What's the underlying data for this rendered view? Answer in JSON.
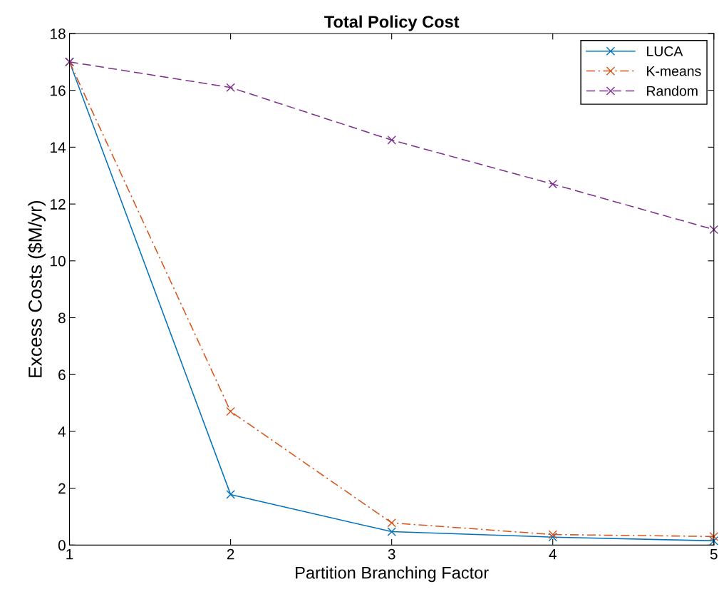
{
  "chart_data": {
    "type": "line",
    "title": "Total Policy Cost",
    "xlabel": "Partition Branching Factor",
    "ylabel": "Excess Costs ($M/yr)",
    "x": [
      1,
      2,
      3,
      4,
      5
    ],
    "series": [
      {
        "name": "LUCA",
        "color": "#0072bd",
        "line_style": "solid",
        "values": [
          17,
          1.78,
          0.47,
          0.28,
          0.15
        ]
      },
      {
        "name": "K-means",
        "color": "#d95319",
        "line_style": "dashdot",
        "values": [
          17,
          4.7,
          0.78,
          0.37,
          0.3
        ]
      },
      {
        "name": "Random",
        "color": "#7e2f8e",
        "line_style": "dashed",
        "values": [
          17,
          16.1,
          14.25,
          12.7,
          11.1
        ]
      }
    ],
    "marker": "cross",
    "xlim": [
      1,
      5
    ],
    "ylim": [
      0,
      18
    ],
    "xticks": [
      1,
      2,
      3,
      4,
      5
    ],
    "yticks": [
      0,
      2,
      4,
      6,
      8,
      10,
      12,
      14,
      16,
      18
    ],
    "grid": false,
    "legend": "top right"
  }
}
